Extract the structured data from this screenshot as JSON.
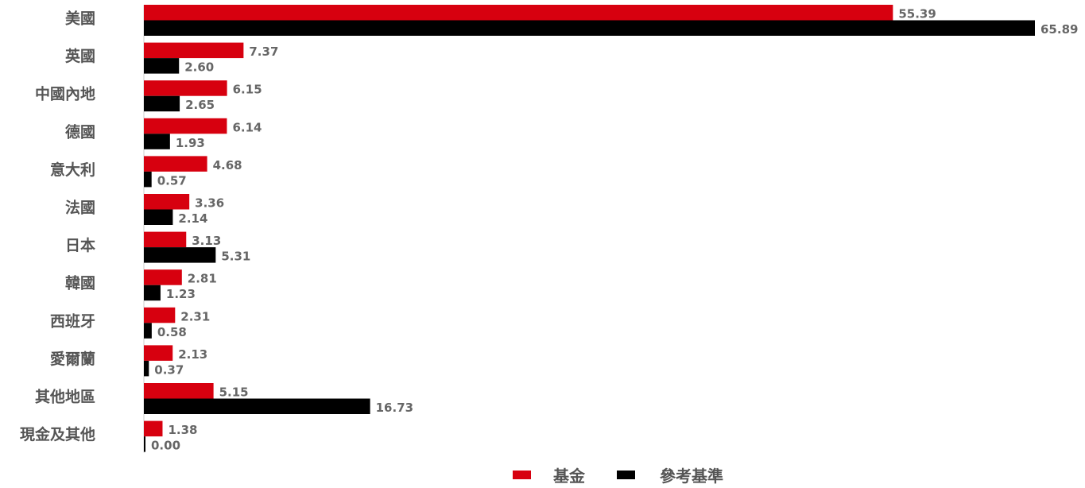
{
  "chart_data": {
    "type": "bar",
    "orientation": "horizontal",
    "categories": [
      "美國",
      "英國",
      "中國內地",
      "德國",
      "意大利",
      "法國",
      "日本",
      "韓國",
      "西班牙",
      "愛爾蘭",
      "其他地區",
      "現金及其他"
    ],
    "series": [
      {
        "name": "基金",
        "color": "#d7000f",
        "values": [
          55.39,
          7.37,
          6.15,
          6.14,
          4.68,
          3.36,
          3.13,
          2.81,
          2.31,
          2.13,
          5.15,
          1.38
        ]
      },
      {
        "name": "參考基準",
        "color": "#000000",
        "values": [
          65.89,
          2.6,
          2.65,
          1.93,
          0.57,
          2.14,
          5.31,
          1.23,
          0.58,
          0.37,
          16.73,
          0.0
        ]
      }
    ],
    "value_labels": [
      [
        "55.39",
        "7.37",
        "6.15",
        "6.14",
        "4.68",
        "3.36",
        "3.13",
        "2.81",
        "2.31",
        "2.13",
        "5.15",
        "1.38"
      ],
      [
        "65.89",
        "2.60",
        "2.65",
        "1.93",
        "0.57",
        "2.14",
        "5.31",
        "1.23",
        "0.58",
        "0.37",
        "16.73",
        "0.00"
      ]
    ],
    "xlim": [
      0,
      65.89
    ],
    "grid": false,
    "legend_position": "bottom-center"
  }
}
